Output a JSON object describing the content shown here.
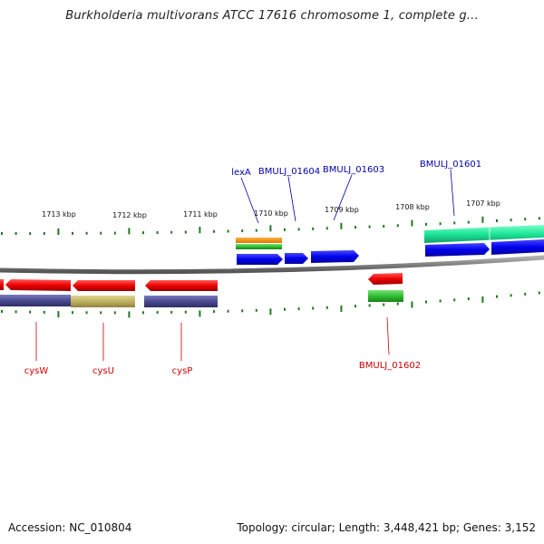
{
  "title": "Burkholderia multivorans ATCC 17616 chromosome 1, complete g...",
  "footer": {
    "accession": "Accession: NC_010804",
    "summary": "Topology: circular; Length: 3,448,421 bp; Genes: 3,152"
  },
  "colors": {
    "backbone": "#8a8a8a",
    "tick": "#1f7a1f",
    "forward_gene": "#0000ee",
    "reverse_gene": "#ee0000",
    "label_blue": "#0000aa",
    "label_red": "#cc0000"
  },
  "scale_labels": [
    "1713 kbp",
    "1712 kbp",
    "1711 kbp",
    "1710 kbp",
    "1709 kbp",
    "1708 kbp",
    "1707 kbp"
  ],
  "gene_labels_top": [
    "lexA",
    "BMULJ_01604",
    "BMULJ_01603",
    "BMULJ_01601"
  ],
  "gene_labels_bottom": [
    "cysW",
    "cysU",
    "cysP",
    "BMULJ_01602"
  ]
}
